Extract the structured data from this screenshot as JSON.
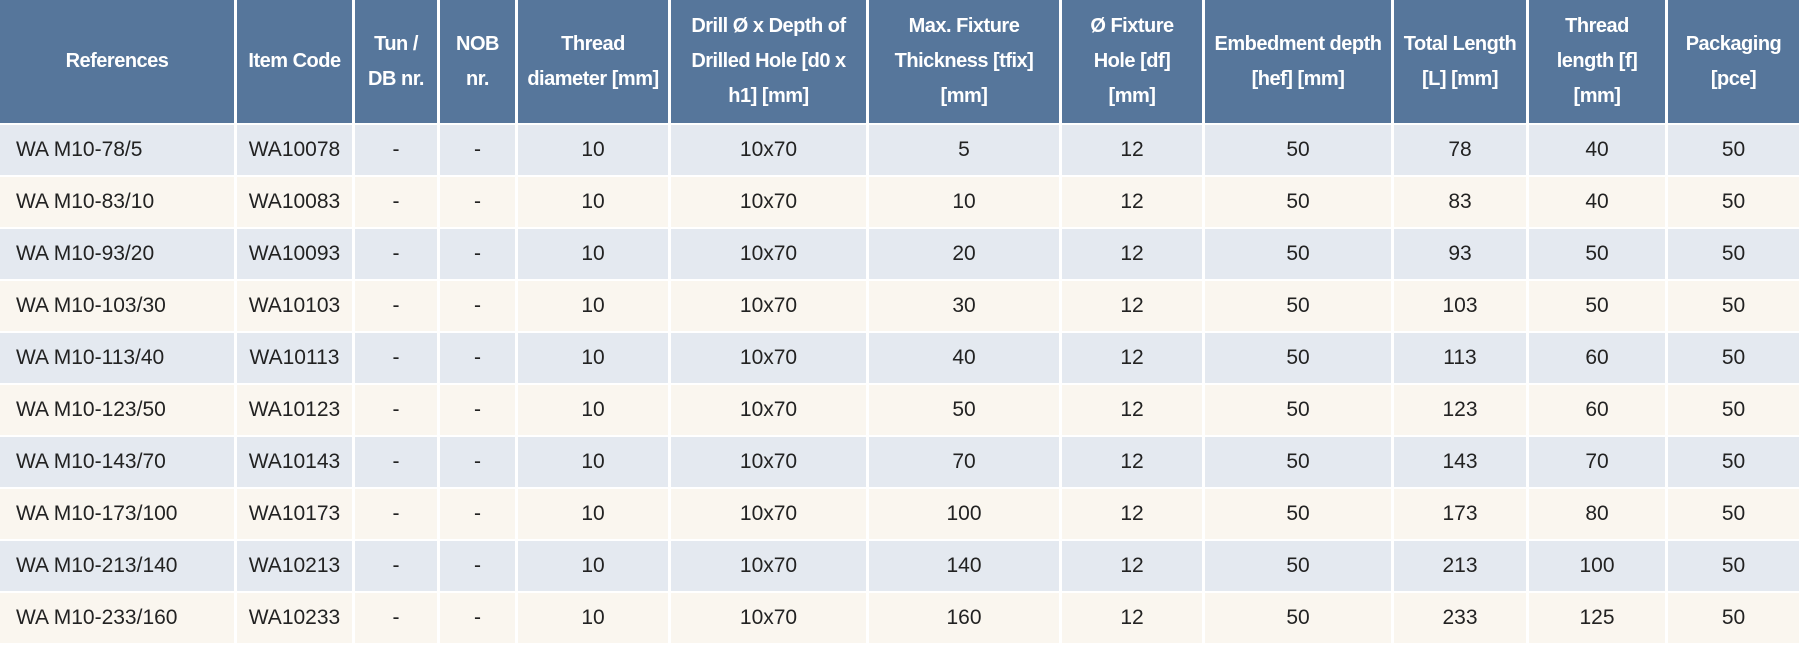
{
  "table": {
    "header": [
      "References",
      "Item Code",
      "Tun / DB nr.",
      "NOB nr.",
      "Thread diameter [mm]",
      "Drill Ø x Depth of Drilled Hole [d0 x h1] [mm]",
      "Max. Fixture Thickness [tfix] [mm]",
      "Ø Fixture Hole [df] [mm]",
      "Embedment depth [hef] [mm]",
      "Total Length [L] [mm]",
      "Thread length [f] [mm]",
      "Packaging [pce]"
    ],
    "rows": [
      [
        "WA M10-78/5",
        "WA10078",
        "-",
        "-",
        "10",
        "10x70",
        "5",
        "12",
        "50",
        "78",
        "40",
        "50"
      ],
      [
        "WA M10-83/10",
        "WA10083",
        "-",
        "-",
        "10",
        "10x70",
        "10",
        "12",
        "50",
        "83",
        "40",
        "50"
      ],
      [
        "WA M10-93/20",
        "WA10093",
        "-",
        "-",
        "10",
        "10x70",
        "20",
        "12",
        "50",
        "93",
        "50",
        "50"
      ],
      [
        "WA M10-103/30",
        "WA10103",
        "-",
        "-",
        "10",
        "10x70",
        "30",
        "12",
        "50",
        "103",
        "50",
        "50"
      ],
      [
        "WA M10-113/40",
        "WA10113",
        "-",
        "-",
        "10",
        "10x70",
        "40",
        "12",
        "50",
        "113",
        "60",
        "50"
      ],
      [
        "WA M10-123/50",
        "WA10123",
        "-",
        "-",
        "10",
        "10x70",
        "50",
        "12",
        "50",
        "123",
        "60",
        "50"
      ],
      [
        "WA M10-143/70",
        "WA10143",
        "-",
        "-",
        "10",
        "10x70",
        "70",
        "12",
        "50",
        "143",
        "70",
        "50"
      ],
      [
        "WA M10-173/100",
        "WA10173",
        "-",
        "-",
        "10",
        "10x70",
        "100",
        "12",
        "50",
        "173",
        "80",
        "50"
      ],
      [
        "WA M10-213/140",
        "WA10213",
        "-",
        "-",
        "10",
        "10x70",
        "140",
        "12",
        "50",
        "213",
        "100",
        "50"
      ],
      [
        "WA M10-233/160",
        "WA10233",
        "-",
        "-",
        "10",
        "10x70",
        "160",
        "12",
        "50",
        "233",
        "125",
        "50"
      ]
    ]
  }
}
